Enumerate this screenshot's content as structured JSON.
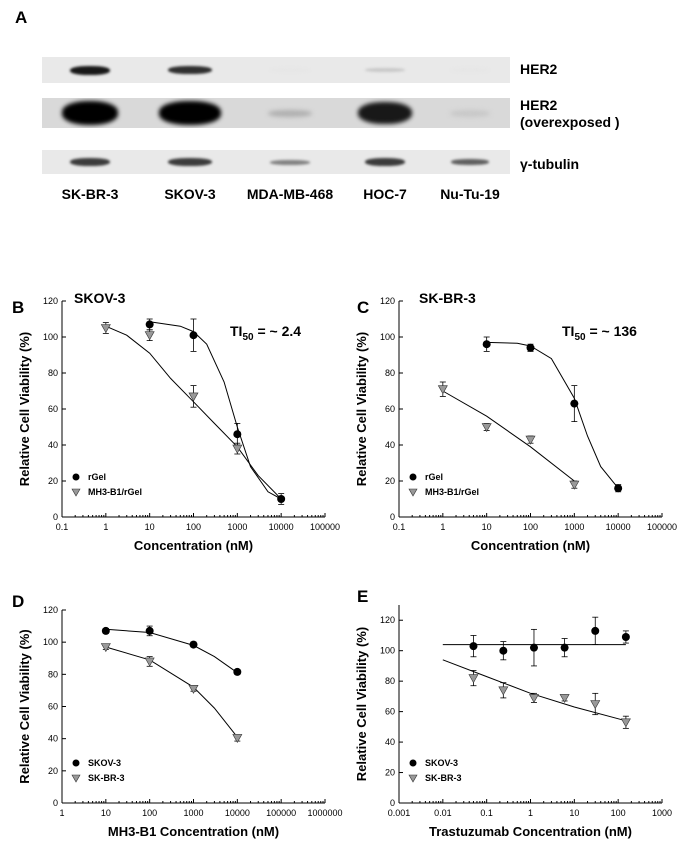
{
  "blot": {
    "label": "A",
    "lanes": [
      "SK-BR-3",
      "SKOV-3",
      "MDA-MB-468",
      "HOC-7",
      "Nu-Tu-19"
    ],
    "rows": [
      {
        "label_lines": [
          "HER2"
        ],
        "intensities": [
          0.9,
          0.8,
          0.02,
          0.15,
          0.02
        ]
      },
      {
        "label_lines": [
          "HER2",
          "(overexposed )"
        ],
        "intensities": [
          1.0,
          1.0,
          0.25,
          0.9,
          0.15
        ]
      },
      {
        "label_lines": [
          "γ-tubulin"
        ],
        "intensities": [
          0.75,
          0.75,
          0.45,
          0.75,
          0.6
        ]
      }
    ]
  },
  "chart_data": [
    {
      "id": "B",
      "panel_label": "B",
      "type": "scatter",
      "title": "SKOV-3",
      "annotation_main": "TI",
      "annotation_sub": "50",
      "annotation_rest": " = ~ 2.4",
      "xlabel": "Concentration (nM)",
      "ylabel": "Relative Cell Viability (%)",
      "x_scale": "log",
      "xlim": [
        0.1,
        100000
      ],
      "ylim": [
        0,
        120
      ],
      "xticks": [
        0.1,
        1,
        10,
        100,
        1000,
        10000,
        100000
      ],
      "xtick_labels": [
        "0.1",
        "1",
        "10",
        "100",
        "1000",
        "10000",
        "100000"
      ],
      "yticks": [
        0,
        20,
        40,
        60,
        80,
        100,
        120
      ],
      "legend_position": "bottom-left",
      "series": [
        {
          "name": "rGel",
          "marker": "circle",
          "color": "#000000",
          "points": [
            {
              "x": 10,
              "y": 107,
              "err": 3
            },
            {
              "x": 100,
              "y": 101,
              "err": 9
            },
            {
              "x": 1000,
              "y": 46,
              "err": 6
            },
            {
              "x": 10000,
              "y": 10,
              "err": 3
            }
          ],
          "fit": [
            [
              10,
              108.5
            ],
            [
              50,
              106
            ],
            [
              100,
              103
            ],
            [
              200,
              96
            ],
            [
              500,
              75
            ],
            [
              1000,
              50
            ],
            [
              2000,
              28
            ],
            [
              5000,
              14
            ],
            [
              10000,
              10
            ]
          ]
        },
        {
          "name": "MH3-B1/rGel",
          "marker": "triangle",
          "color": "#999999",
          "points": [
            {
              "x": 1,
              "y": 105,
              "err": 3
            },
            {
              "x": 10,
              "y": 101,
              "err": 3
            },
            {
              "x": 100,
              "y": 67,
              "err": 6
            },
            {
              "x": 1000,
              "y": 38,
              "err": 3
            }
          ],
          "fit": [
            [
              1,
              106
            ],
            [
              3,
              101
            ],
            [
              10,
              91
            ],
            [
              30,
              77
            ],
            [
              100,
              64
            ],
            [
              300,
              52
            ],
            [
              1000,
              39
            ],
            [
              3000,
              23
            ],
            [
              10000,
              10
            ]
          ]
        }
      ]
    },
    {
      "id": "C",
      "panel_label": "C",
      "type": "scatter",
      "title": "SK-BR-3",
      "annotation_main": "TI",
      "annotation_sub": "50",
      "annotation_rest": " = ~ 136",
      "xlabel": "Concentration (nM)",
      "ylabel": "Relative Cell Viability (%)",
      "x_scale": "log",
      "xlim": [
        0.1,
        100000
      ],
      "ylim": [
        0,
        120
      ],
      "xticks": [
        0.1,
        1,
        10,
        100,
        1000,
        10000,
        100000
      ],
      "xtick_labels": [
        "0.1",
        "1",
        "10",
        "100",
        "1000",
        "10000",
        "100000"
      ],
      "yticks": [
        0,
        20,
        40,
        60,
        80,
        100,
        120
      ],
      "legend_position": "bottom-left",
      "series": [
        {
          "name": "rGel",
          "marker": "circle",
          "color": "#000000",
          "points": [
            {
              "x": 10,
              "y": 96,
              "err": 4
            },
            {
              "x": 100,
              "y": 94,
              "err": 2
            },
            {
              "x": 1000,
              "y": 63,
              "err": 10
            },
            {
              "x": 10000,
              "y": 16,
              "err": 2
            }
          ],
          "fit": [
            [
              10,
              97
            ],
            [
              50,
              96.5
            ],
            [
              100,
              95
            ],
            [
              300,
              88
            ],
            [
              1000,
              66
            ],
            [
              2000,
              45
            ],
            [
              4000,
              28
            ],
            [
              10000,
              16
            ]
          ]
        },
        {
          "name": "MH3-B1/rGel",
          "marker": "triangle",
          "color": "#999999",
          "points": [
            {
              "x": 1,
              "y": 71,
              "err": 4
            },
            {
              "x": 10,
              "y": 50,
              "err": 2
            },
            {
              "x": 100,
              "y": 43,
              "err": 2
            },
            {
              "x": 1000,
              "y": 18,
              "err": 2
            }
          ],
          "fit": [
            [
              1,
              70
            ],
            [
              10,
              56
            ],
            [
              100,
              39
            ],
            [
              1000,
              20
            ]
          ]
        }
      ]
    },
    {
      "id": "D",
      "panel_label": "D",
      "type": "scatter",
      "title": "",
      "xlabel": "MH3-B1 Concentration (nM)",
      "ylabel": "Relative Cell Viability (%)",
      "x_scale": "log",
      "xlim": [
        1,
        1000000
      ],
      "ylim": [
        0,
        120
      ],
      "xticks": [
        1,
        10,
        100,
        1000,
        10000,
        100000,
        1000000
      ],
      "xtick_labels": [
        "1",
        "10",
        "100",
        "1000",
        "10000",
        "100000",
        "1000000"
      ],
      "yticks": [
        0,
        20,
        40,
        60,
        80,
        100,
        120
      ],
      "legend_position": "bottom-left",
      "series": [
        {
          "name": "SKOV-3",
          "marker": "circle",
          "color": "#000000",
          "points": [
            {
              "x": 10,
              "y": 107,
              "err": 1.5
            },
            {
              "x": 100,
              "y": 107,
              "err": 3
            },
            {
              "x": 1000,
              "y": 98.5,
              "err": 1.5
            },
            {
              "x": 10000,
              "y": 81.5,
              "err": 1.5
            }
          ],
          "fit": [
            [
              10,
              108
            ],
            [
              100,
              106
            ],
            [
              1000,
              98
            ],
            [
              3000,
              91
            ],
            [
              10000,
              81
            ]
          ]
        },
        {
          "name": "SK-BR-3",
          "marker": "triangle",
          "color": "#999999",
          "points": [
            {
              "x": 10,
              "y": 97,
              "err": 1.5
            },
            {
              "x": 100,
              "y": 88,
              "err": 3
            },
            {
              "x": 1000,
              "y": 71,
              "err": 1.5
            },
            {
              "x": 10000,
              "y": 40.5,
              "err": 2
            }
          ],
          "fit": [
            [
              10,
              97
            ],
            [
              100,
              89
            ],
            [
              1000,
              72
            ],
            [
              3000,
              59
            ],
            [
              10000,
              41
            ]
          ]
        }
      ]
    },
    {
      "id": "E",
      "panel_label": "E",
      "type": "scatter",
      "title": "",
      "xlabel": "Trastuzumab Concentration (nM)",
      "ylabel": "Relative Cell Viability (%)",
      "x_scale": "log",
      "xlim": [
        0.001,
        1000
      ],
      "ylim": [
        0,
        130
      ],
      "xticks": [
        0.001,
        0.01,
        0.1,
        1,
        10,
        100,
        1000
      ],
      "xtick_labels": [
        "0.001",
        "0.01",
        "0.1",
        "1",
        "10",
        "100",
        "1000"
      ],
      "yticks": [
        0,
        20,
        40,
        60,
        80,
        100,
        120
      ],
      "legend_position": "bottom-left",
      "series": [
        {
          "name": "SKOV-3",
          "marker": "circle",
          "color": "#000000",
          "points": [
            {
              "x": 0.05,
              "y": 103,
              "err": 7
            },
            {
              "x": 0.24,
              "y": 100,
              "err": 6
            },
            {
              "x": 1.2,
              "y": 102,
              "err": 12
            },
            {
              "x": 6,
              "y": 102,
              "err": 6
            },
            {
              "x": 30,
              "y": 113,
              "err": 9
            },
            {
              "x": 150,
              "y": 109,
              "err": 4
            }
          ],
          "fit": [
            [
              0.01,
              104
            ],
            [
              150,
              104
            ]
          ]
        },
        {
          "name": "SK-BR-3",
          "marker": "triangle",
          "color": "#999999",
          "points": [
            {
              "x": 0.05,
              "y": 82,
              "err": 5
            },
            {
              "x": 0.24,
              "y": 74,
              "err": 5
            },
            {
              "x": 1.2,
              "y": 69,
              "err": 3
            },
            {
              "x": 6,
              "y": 69,
              "err": 2
            },
            {
              "x": 30,
              "y": 65,
              "err": 7
            },
            {
              "x": 150,
              "y": 53,
              "err": 4
            }
          ],
          "fit": [
            [
              0.01,
              94
            ],
            [
              0.1,
              83
            ],
            [
              1,
              72
            ],
            [
              10,
              63
            ],
            [
              150,
              54
            ]
          ]
        }
      ]
    }
  ]
}
